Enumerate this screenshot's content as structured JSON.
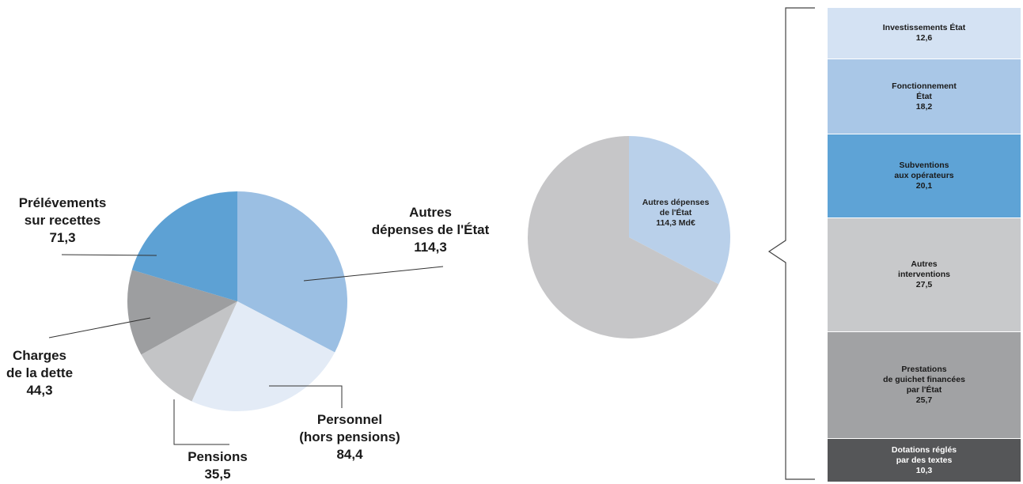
{
  "chart_data": [
    {
      "type": "pie",
      "slices": [
        {
          "label_lines": [
            "Autres",
            "dépenses de l'État"
          ],
          "value": 114.3,
          "value_text": "114,3",
          "color": "#9bbfe3"
        },
        {
          "label_lines": [
            "Personnel",
            "(hors pensions)"
          ],
          "value": 84.4,
          "value_text": "84,4",
          "color": "#e3ebf6"
        },
        {
          "label_lines": [
            "Pensions"
          ],
          "value": 35.5,
          "value_text": "35,5",
          "color": "#c3c4c6"
        },
        {
          "label_lines": [
            "Charges",
            "de la dette"
          ],
          "value": 44.3,
          "value_text": "44,3",
          "color": "#9d9ea0"
        },
        {
          "label_lines": [
            "Prélévements",
            "sur recettes"
          ],
          "value": 71.3,
          "value_text": "71,3",
          "color": "#5da1d4"
        }
      ]
    },
    {
      "type": "pie",
      "slices": [
        {
          "label_lines": [
            "Autres dépenses",
            "de l'État",
            "114,3 Md€"
          ],
          "value": 114.3,
          "color": "#b9d0ea"
        },
        {
          "label_lines": [],
          "value": 235.5,
          "color": "#c6c6c8"
        }
      ]
    },
    {
      "type": "bar",
      "orientation": "stacked-vertical",
      "segments": [
        {
          "label_lines": [
            "Investissements État"
          ],
          "value": 12.6,
          "value_text": "12,6",
          "color": "#d4e2f3"
        },
        {
          "label_lines": [
            "Fonctionnement",
            "État"
          ],
          "value": 18.2,
          "value_text": "18,2",
          "color": "#a9c7e7"
        },
        {
          "label_lines": [
            "Subventions",
            "aux opérateurs"
          ],
          "value": 20.1,
          "value_text": "20,1",
          "color": "#5ea3d6"
        },
        {
          "label_lines": [
            "Autres",
            "interventions"
          ],
          "value": 27.5,
          "value_text": "27,5",
          "color": "#c8c9cb"
        },
        {
          "label_lines": [
            "Prestations",
            "de guichet financées",
            "par l'État"
          ],
          "value": 25.7,
          "value_text": "25,7",
          "color": "#a1a2a4"
        },
        {
          "label_lines": [
            "Dotations réglés",
            "par des textes"
          ],
          "value": 10.3,
          "value_text": "10,3",
          "color": "#555658",
          "dark": true
        }
      ]
    }
  ]
}
